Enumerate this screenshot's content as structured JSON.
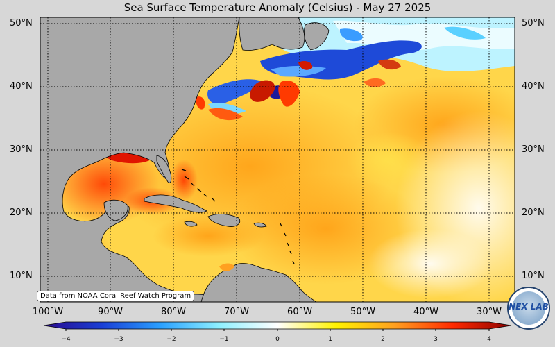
{
  "title": "Sea Surface Temperature Anomaly (Celsius) - May 27 2025",
  "latitude_labels": [
    "50°N",
    "40°N",
    "30°N",
    "20°N",
    "10°N"
  ],
  "longitude_labels": [
    "100°W",
    "90°W",
    "80°W",
    "70°W",
    "60°W",
    "50°W",
    "40°W",
    "30°W"
  ],
  "colorbar": {
    "ticks": [
      "−4",
      "−3",
      "−2",
      "−1",
      "0",
      "1",
      "2",
      "3",
      "4"
    ],
    "min": -4,
    "max": 4,
    "colors": [
      "#2a0a8c",
      "#1a3fd6",
      "#2aa0ff",
      "#8ef0ff",
      "#ffffff",
      "#fff200",
      "#ffa020",
      "#ff2a00",
      "#8a0000"
    ]
  },
  "credit": "Data from NOAA Coral Reef Watch Program",
  "logo": {
    "text": "NEX LAB"
  },
  "colors": {
    "land": "#a8a8a8",
    "background": "#d7d7d7",
    "graticule": "#000000"
  }
}
